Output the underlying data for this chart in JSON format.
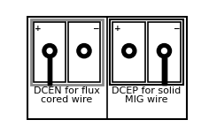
{
  "bg_color": "#ffffff",
  "border_color": "#000000",
  "gray_border": "#888888",
  "plug_color": "#000000",
  "wire_color": "#000000",
  "text_color": "#000000",
  "left_label_line1": "DCEN for flux",
  "left_label_line2": "cored wire",
  "right_label_line1": "DCEP for solid",
  "right_label_line2": "MIG wire",
  "plus_sign": "+",
  "minus_sign": "−"
}
